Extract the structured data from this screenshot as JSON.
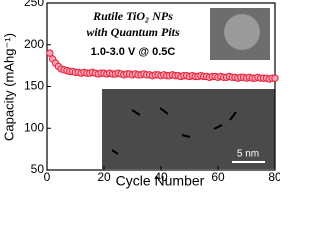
{
  "chart_data": {
    "type": "line",
    "x_label": "Cycle Number",
    "y_label": "Capacity (mAhg⁻¹)",
    "annotations": [
      "Rutile TiO₂ NPs",
      "with Quantum Pits",
      "1.0-3.0 V @ 0.5C",
      "5 nm"
    ],
    "x": [
      1,
      2,
      3,
      4,
      5,
      6,
      7,
      8,
      9,
      10,
      11,
      12,
      13,
      14,
      15,
      16,
      17,
      18,
      19,
      20,
      21,
      22,
      23,
      24,
      25,
      26,
      27,
      28,
      29,
      30,
      31,
      32,
      33,
      34,
      35,
      36,
      37,
      38,
      39,
      40,
      41,
      42,
      43,
      44,
      45,
      46,
      47,
      48,
      49,
      50,
      51,
      52,
      53,
      54,
      55,
      56,
      57,
      58,
      59,
      60,
      61,
      62,
      63,
      64,
      65,
      66,
      67,
      68,
      69,
      70,
      71,
      72,
      73,
      74,
      75,
      76,
      77,
      78,
      79,
      80
    ],
    "series": [
      {
        "color": "#e8203a",
        "values": [
          190,
          183,
          178,
          174,
          171,
          170,
          169,
          168,
          168,
          167,
          167,
          166,
          167,
          166,
          166,
          167,
          166,
          165,
          166,
          166,
          165,
          166,
          165,
          165,
          166,
          165,
          164,
          165,
          165,
          164,
          165,
          164,
          164,
          165,
          164,
          164,
          163,
          164,
          164,
          163,
          164,
          163,
          163,
          164,
          163,
          163,
          162,
          163,
          163,
          162,
          163,
          162,
          162,
          163,
          162,
          162,
          161,
          162,
          162,
          161,
          162,
          161,
          161,
          162,
          161,
          161,
          160,
          161,
          161,
          160,
          161,
          160,
          160,
          161,
          160,
          160,
          160,
          159,
          160,
          160
        ]
      }
    ],
    "xlim": [
      0,
      80
    ],
    "xticks": [
      0,
      20,
      40,
      60,
      80
    ],
    "ylim": [
      50,
      250
    ],
    "yticks": [
      50,
      100,
      150,
      200,
      250
    ]
  }
}
